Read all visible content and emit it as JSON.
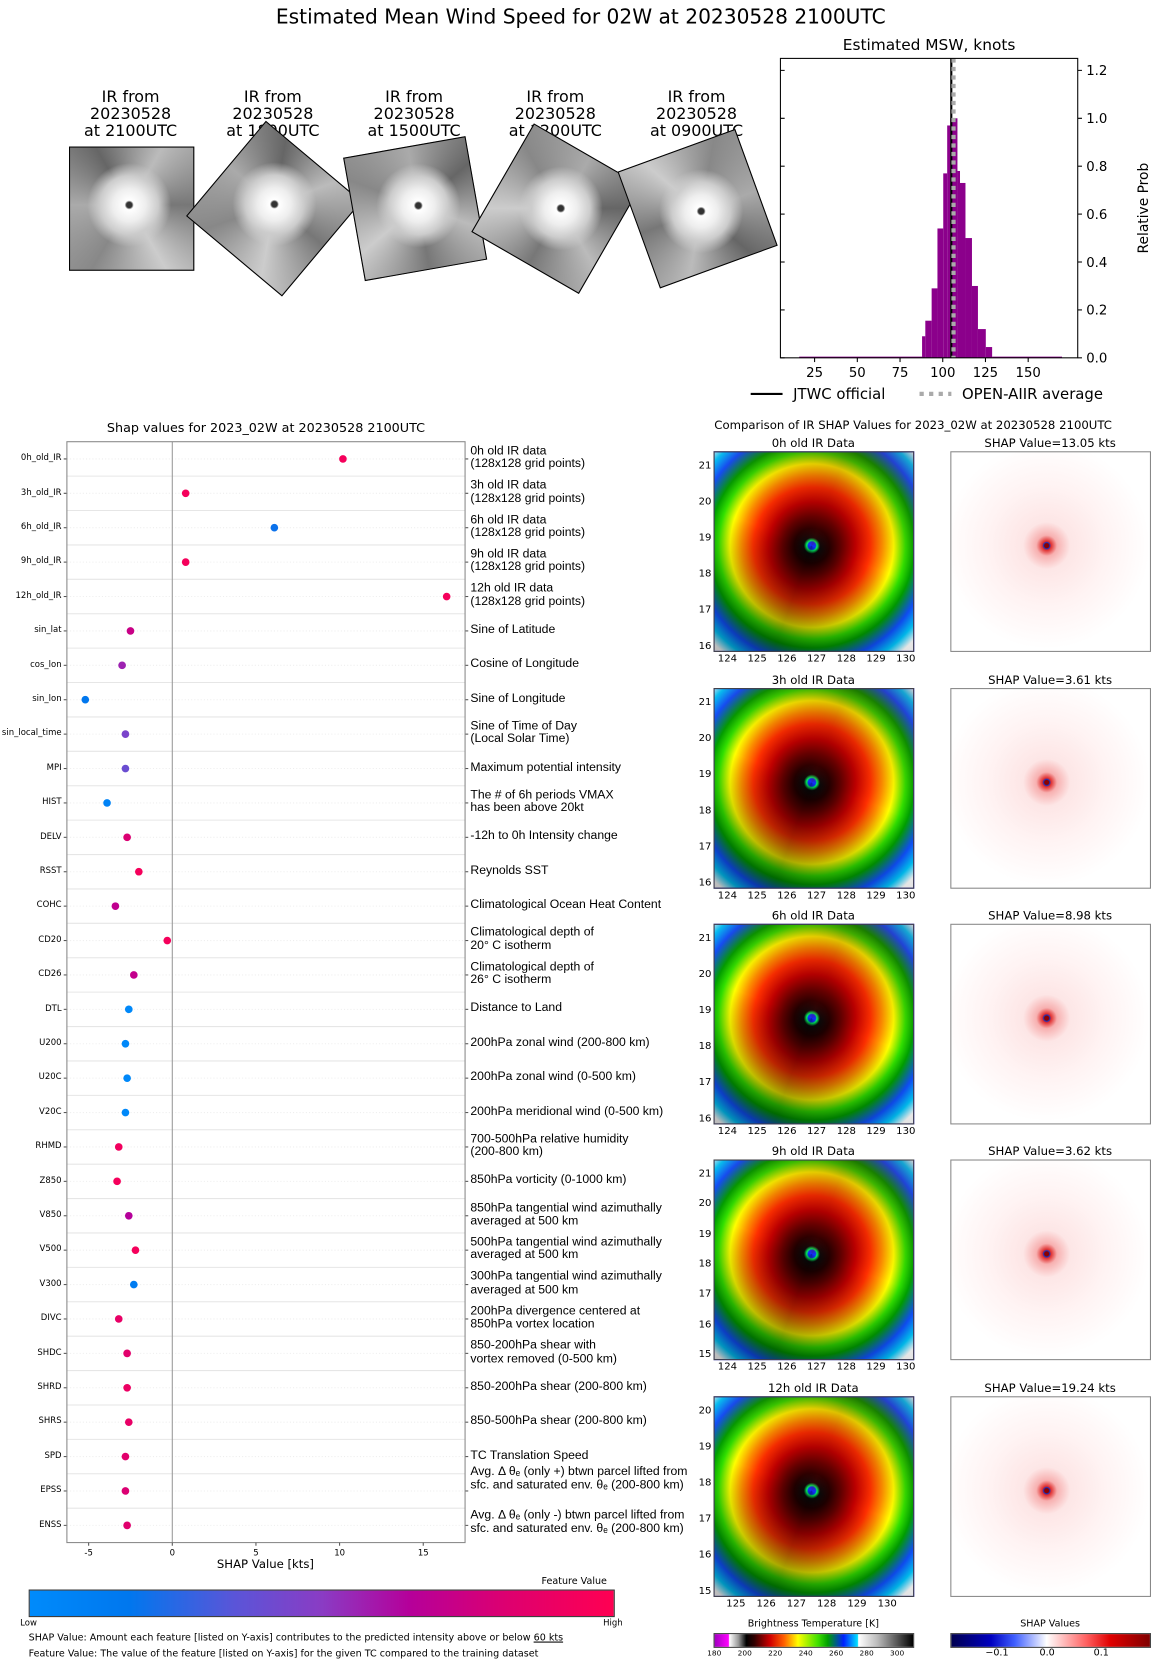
{
  "title": "Estimated Mean Wind Speed for 02W at 20230528 2100UTC",
  "thumbnails": [
    {
      "l1": "IR from",
      "l2": "20230528",
      "l3": "at 2100UTC"
    },
    {
      "l1": "IR from",
      "l2": "20230528",
      "l3": "at 1800UTC"
    },
    {
      "l1": "IR from",
      "l2": "20230528",
      "l3": "at 1500UTC"
    },
    {
      "l1": "IR from",
      "l2": "20230528",
      "l3": "at 1200UTC"
    },
    {
      "l1": "IR from",
      "l2": "20230528",
      "l3": "at 0900UTC"
    }
  ],
  "chart_data": [
    {
      "type": "bar",
      "title": "Estimated MSW, knots",
      "xlabel": "",
      "ylabel": "Relative Prob",
      "xlim": [
        5,
        179
      ],
      "ylim": [
        0,
        1.25
      ],
      "xticks": [
        25,
        50,
        75,
        100,
        125,
        150
      ],
      "yticks": [
        "0.0",
        "0.2",
        "0.4",
        "0.6",
        "0.8",
        "1.0",
        "1.2"
      ],
      "bins": [
        {
          "start": 16,
          "end": 87.9,
          "value": 0.005
        },
        {
          "start": 87.9,
          "end": 89.8,
          "value": 0.09
        },
        {
          "start": 89.8,
          "end": 93.5,
          "value": 0.155
        },
        {
          "start": 93.5,
          "end": 96.9,
          "value": 0.29
        },
        {
          "start": 96.9,
          "end": 100.3,
          "value": 0.54
        },
        {
          "start": 100.3,
          "end": 102.6,
          "value": 0.77
        },
        {
          "start": 102.6,
          "end": 104.4,
          "value": 0.97
        },
        {
          "start": 104.4,
          "end": 108.6,
          "value": 1.0
        },
        {
          "start": 108.6,
          "end": 110.1,
          "value": 0.78
        },
        {
          "start": 110.1,
          "end": 113.3,
          "value": 0.73
        },
        {
          "start": 113.3,
          "end": 117.1,
          "value": 0.5
        },
        {
          "start": 117.1,
          "end": 120.6,
          "value": 0.3
        },
        {
          "start": 120.6,
          "end": 125.2,
          "value": 0.12
        },
        {
          "start": 125.2,
          "end": 128.9,
          "value": 0.045
        },
        {
          "start": 128.9,
          "end": 169.8,
          "value": 0.005
        }
      ],
      "bar_color": "#8b008b",
      "jtwc_official": 105,
      "open_aiir_average": 106.3,
      "legend": {
        "placement": "bottom",
        "jtwc_label": "JTWC official",
        "aiir_label": "OPEN-AIIR average"
      }
    },
    {
      "type": "scatter",
      "title": "Shap values for 2023_02W at 20230528 2100UTC",
      "xlabel": "SHAP Value [kts]",
      "xlim": [
        -6.3,
        17.5
      ],
      "xticks": [
        "-5",
        "0",
        "5",
        "10",
        "15"
      ],
      "xtick_values": [
        -5,
        0,
        5,
        10,
        15
      ],
      "colorbar": {
        "title": "Feature Value",
        "low": "Low",
        "high": "High",
        "low_color": "#008bfb",
        "high_color": "#ff0052"
      },
      "features": [
        {
          "name": "0h_old_IR",
          "desc": [
            "0h old IR data",
            "(128x128 grid points)"
          ],
          "shap": 10.2,
          "feature_value": 0.95
        },
        {
          "name": "3h_old_IR",
          "desc": [
            "3h old IR data",
            "(128x128 grid points)"
          ],
          "shap": 0.8,
          "feature_value": 0.95
        },
        {
          "name": "6h_old_IR",
          "desc": [
            "6h old IR data",
            "(128x128 grid points)"
          ],
          "shap": 6.1,
          "feature_value": 0.22
        },
        {
          "name": "9h_old_IR",
          "desc": [
            "9h old IR data",
            "(128x128 grid points)"
          ],
          "shap": 0.8,
          "feature_value": 0.95
        },
        {
          "name": "12h_old_IR",
          "desc": [
            "12h old IR data",
            "(128x128 grid points)"
          ],
          "shap": 16.4,
          "feature_value": 0.95
        },
        {
          "name": "sin_lat",
          "desc": [
            "Sine of Latitude"
          ],
          "shap": -2.5,
          "feature_value": 0.75
        },
        {
          "name": "cos_lon",
          "desc": [
            "Cosine of Longitude"
          ],
          "shap": -3.0,
          "feature_value": 0.58
        },
        {
          "name": "sin_lon",
          "desc": [
            "Sine of Longitude"
          ],
          "shap": -5.2,
          "feature_value": 0.2
        },
        {
          "name": "sin_local_time",
          "desc": [
            "Sine of Time of Day",
            "(Local Solar Time)"
          ],
          "shap": -2.8,
          "feature_value": 0.45
        },
        {
          "name": "MPI",
          "desc": [
            "Maximum potential intensity"
          ],
          "shap": -2.8,
          "feature_value": 0.4
        },
        {
          "name": "HIST",
          "desc": [
            "The # of 6h periods VMAX",
            "has been above 20kt"
          ],
          "shap": -3.9,
          "feature_value": 0.08
        },
        {
          "name": "DELV",
          "desc": [
            "-12h to 0h Intensity change"
          ],
          "shap": -2.7,
          "feature_value": 0.82
        },
        {
          "name": "RSST",
          "desc": [
            "Reynolds SST"
          ],
          "shap": -2.0,
          "feature_value": 0.95
        },
        {
          "name": "COHC",
          "desc": [
            "Climatological Ocean Heat Content"
          ],
          "shap": -3.4,
          "feature_value": 0.72
        },
        {
          "name": "CD20",
          "desc": [
            "Climatological depth of",
            "20° C isotherm"
          ],
          "shap": -0.3,
          "feature_value": 0.95
        },
        {
          "name": "CD26",
          "desc": [
            "Climatological depth of",
            "26° C isotherm"
          ],
          "shap": -2.3,
          "feature_value": 0.73
        },
        {
          "name": "DTL",
          "desc": [
            "Distance to Land"
          ],
          "shap": -2.6,
          "feature_value": 0.03
        },
        {
          "name": "U200",
          "desc": [
            "200hPa zonal wind (200-800 km)"
          ],
          "shap": -2.8,
          "feature_value": 0.03
        },
        {
          "name": "U20C",
          "desc": [
            "200hPa zonal wind (0-500 km)"
          ],
          "shap": -2.7,
          "feature_value": 0.03
        },
        {
          "name": "V20C",
          "desc": [
            "200hPa meridional wind (0-500 km)"
          ],
          "shap": -2.8,
          "feature_value": 0.03
        },
        {
          "name": "RHMD",
          "desc": [
            "700-500hPa relative humidity",
            "(200-800 km)"
          ],
          "shap": -3.2,
          "feature_value": 0.93
        },
        {
          "name": "Z850",
          "desc": [
            "850hPa vorticity (0-1000 km)"
          ],
          "shap": -3.3,
          "feature_value": 0.95
        },
        {
          "name": "V850",
          "desc": [
            "850hPa tangential wind azimuthally",
            "averaged at 500 km"
          ],
          "shap": -2.6,
          "feature_value": 0.68
        },
        {
          "name": "V500",
          "desc": [
            "500hPa tangential wind azimuthally",
            "averaged at 500 km"
          ],
          "shap": -2.2,
          "feature_value": 0.95
        },
        {
          "name": "V300",
          "desc": [
            "300hPa tangential wind azimuthally",
            "averaged at 500 km"
          ],
          "shap": -2.3,
          "feature_value": 0.15
        },
        {
          "name": "DIVC",
          "desc": [
            "200hPa divergence centered at",
            "850hPa vortex location"
          ],
          "shap": -3.2,
          "feature_value": 0.88
        },
        {
          "name": "SHDC",
          "desc": [
            "850-200hPa shear with",
            "vortex removed (0-500 km)"
          ],
          "shap": -2.7,
          "feature_value": 0.85
        },
        {
          "name": "SHRD",
          "desc": [
            "850-200hPa shear (200-800 km)"
          ],
          "shap": -2.7,
          "feature_value": 0.9
        },
        {
          "name": "SHRS",
          "desc": [
            "850-500hPa shear (200-800 km)"
          ],
          "shap": -2.6,
          "feature_value": 0.88
        },
        {
          "name": "SPD",
          "desc": [
            "TC Translation Speed"
          ],
          "shap": -2.8,
          "feature_value": 0.85
        },
        {
          "name": "EPSS",
          "desc": [
            "Avg. Δ θₑ (only +) btwn parcel lifted from",
            "sfc. and saturated env. θₑ (200-800 km)"
          ],
          "shap": -2.8,
          "feature_value": 0.82
        },
        {
          "name": "ENSS",
          "desc": [
            "Avg. Δ θₑ (only -) btwn parcel lifted from",
            "sfc. and saturated env. θₑ (200-800 km)"
          ],
          "shap": -2.7,
          "feature_value": 0.84
        }
      ]
    }
  ],
  "notes": {
    "shap_prefix": "SHAP Value: Amount each feature [listed on Y-axis] contributes to the predicted intensity above or below ",
    "shap_link": "60 kts",
    "feature": "Feature Value: The value of the feature [listed on Y-axis] for the given TC compared to the training dataset"
  },
  "comparison": {
    "title": "Comparison of IR SHAP Values for 2023_02W at 20230528 2100UTC",
    "rows": [
      {
        "ir_title": "0h old IR Data",
        "shap_title": "SHAP Value=13.05 kts",
        "lats": [
          "21",
          "20",
          "19",
          "18",
          "17",
          "16"
        ],
        "lons": [
          "124",
          "125",
          "126",
          "127",
          "128",
          "129",
          "130"
        ]
      },
      {
        "ir_title": "3h old IR Data",
        "shap_title": "SHAP Value=3.61 kts",
        "lats": [
          "21",
          "20",
          "19",
          "18",
          "17",
          "16"
        ],
        "lons": [
          "124",
          "125",
          "126",
          "127",
          "128",
          "129",
          "130"
        ]
      },
      {
        "ir_title": "6h old IR Data",
        "shap_title": "SHAP Value=8.98 kts",
        "lats": [
          "21",
          "20",
          "19",
          "18",
          "17",
          "16"
        ],
        "lons": [
          "124",
          "125",
          "126",
          "127",
          "128",
          "129",
          "130"
        ]
      },
      {
        "ir_title": "9h old IR Data",
        "shap_title": "SHAP Value=3.62 kts",
        "lats": [
          "21",
          "20",
          "19",
          "18",
          "17",
          "16",
          "15"
        ],
        "lons": [
          "124",
          "125",
          "126",
          "127",
          "128",
          "129",
          "130"
        ]
      },
      {
        "ir_title": "12h old IR Data",
        "shap_title": "SHAP Value=19.24 kts",
        "lats": [
          "20",
          "19",
          "18",
          "17",
          "16",
          "15"
        ],
        "lons": [
          "125",
          "126",
          "127",
          "128",
          "129",
          "130"
        ]
      }
    ],
    "bt_colorbar": {
      "title": "Brightness Temperature [K]",
      "ticks": [
        "180",
        "200",
        "220",
        "240",
        "260",
        "280",
        "300"
      ]
    },
    "shap_colorbar": {
      "title": "SHAP Values",
      "ticks": [
        "−0.1",
        "0.0",
        "0.1"
      ]
    }
  }
}
